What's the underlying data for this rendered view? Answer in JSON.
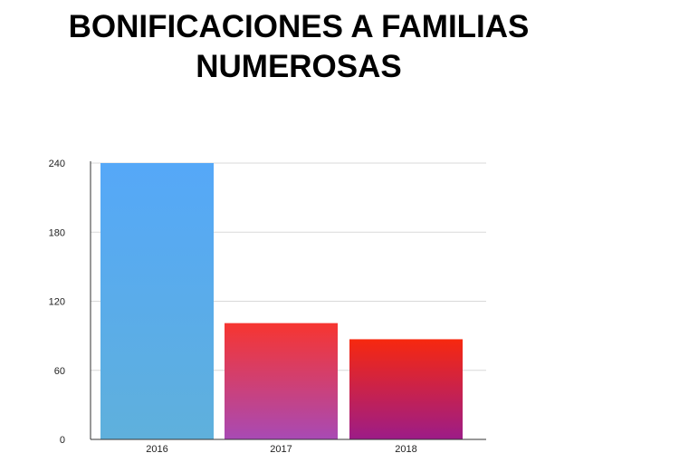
{
  "chart_data": {
    "type": "bar",
    "title": [
      "BONIFICACIONES A FAMILIAS",
      "NUMEROSAS"
    ],
    "categories": [
      "2016",
      "2017",
      "2018"
    ],
    "values": [
      240,
      101,
      87
    ],
    "ylim": [
      0,
      240
    ],
    "yticks": [
      "0",
      "60",
      "120",
      "180",
      "240"
    ],
    "grid": true,
    "colors": {
      "bar_2016": [
        "#55a8f8",
        "#5fb0dc"
      ],
      "bar_2017": [
        "#f73530",
        "#a84ab5"
      ],
      "bar_2018": [
        "#f7280e",
        "#9c1c88"
      ],
      "grid": "#d9d9d9",
      "axis": "#333333"
    }
  }
}
